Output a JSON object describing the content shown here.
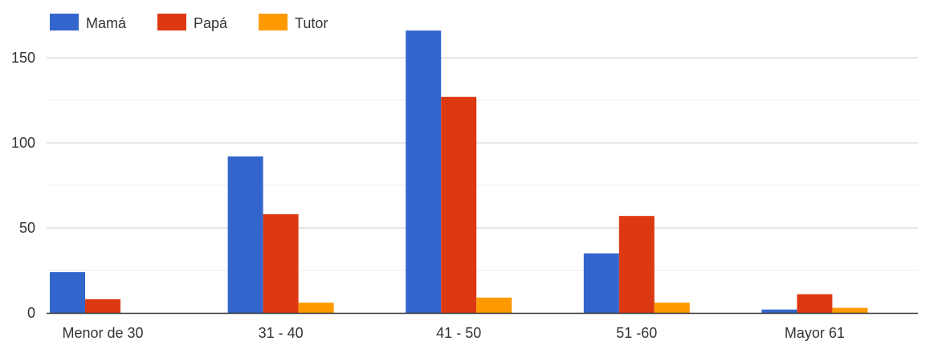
{
  "chart_data": {
    "type": "bar",
    "categories": [
      "Menor de 30",
      "31 - 40",
      "41 - 50",
      "51 -60",
      "Mayor 61"
    ],
    "series": [
      {
        "name": "Mamá",
        "color": "#3366cc",
        "values": [
          24,
          92,
          166,
          35,
          2
        ]
      },
      {
        "name": "Papá",
        "color": "#dc3912",
        "values": [
          8,
          58,
          127,
          57,
          11
        ]
      },
      {
        "name": "Tutor",
        "color": "#ff9900",
        "values": [
          0,
          6,
          9,
          6,
          3
        ]
      }
    ],
    "yticks": [
      "0",
      "50",
      "100",
      "150"
    ],
    "ylim": [
      0,
      170
    ],
    "grid": true,
    "legend_position": "top-left",
    "colors": {
      "grid": "#cccccc",
      "baseline": "#333333",
      "text": "#333333"
    }
  }
}
